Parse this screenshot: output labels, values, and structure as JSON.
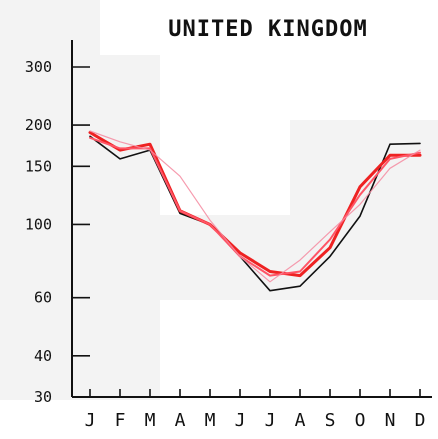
{
  "chart_data": {
    "type": "line",
    "title": "UNITED KINGDOM",
    "xlabel": "",
    "ylabel": "",
    "y_scale": "log",
    "ylim": [
      30,
      380
    ],
    "yticks": [
      30,
      40,
      60,
      100,
      150,
      200,
      300
    ],
    "categories": [
      "J",
      "F",
      "M",
      "A",
      "M",
      "J",
      "J",
      "A",
      "S",
      "O",
      "N",
      "D"
    ],
    "series": [
      {
        "color": "#111111",
        "values": [
          185,
          158,
          168,
          108,
          100,
          80,
          63,
          65,
          80,
          106,
          175,
          176
        ]
      },
      {
        "color": "#ee2222",
        "values": [
          190,
          168,
          175,
          110,
          100,
          82,
          72,
          70,
          85,
          130,
          162,
          162
        ]
      },
      {
        "color": "#ff5566",
        "values": [
          183,
          170,
          170,
          110,
          100,
          80,
          70,
          72,
          90,
          123,
          158,
          165
        ]
      },
      {
        "color": "#f58aa0",
        "values": [
          192,
          178,
          168,
          140,
          103,
          80,
          67,
          78,
          95,
          115,
          148,
          168
        ]
      }
    ]
  }
}
